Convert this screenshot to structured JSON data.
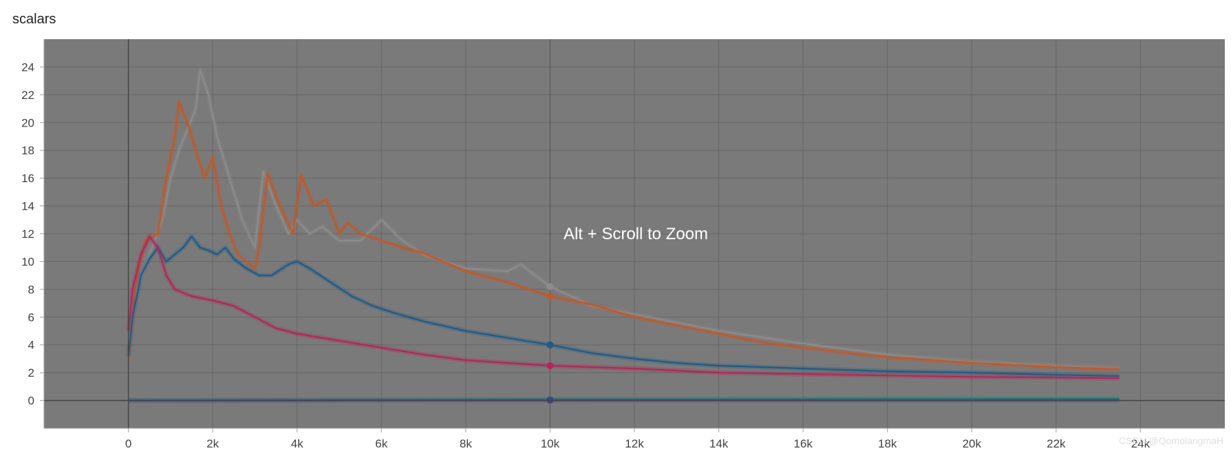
{
  "panel": {
    "title": "scalars"
  },
  "overlay": {
    "message": "Alt + Scroll to Zoom"
  },
  "watermark": "CSDN @QomolangmaH",
  "colors": {
    "plot_bg": "#7a7a7a",
    "grid": "#666666",
    "axis": "#444444",
    "marker_line": "#555555"
  },
  "chart_data": {
    "type": "line",
    "xlim": [
      -2000,
      26000
    ],
    "ylim": [
      -2,
      26
    ],
    "x_ticks": [
      "0",
      "2k",
      "4k",
      "6k",
      "8k",
      "10k",
      "12k",
      "14k",
      "16k",
      "18k",
      "20k",
      "22k",
      "24k"
    ],
    "y_ticks": [
      "0",
      "2",
      "4",
      "6",
      "8",
      "10",
      "12",
      "14",
      "16",
      "18",
      "20",
      "22",
      "24"
    ],
    "grid": true,
    "hover_x": 10000,
    "series": [
      {
        "color": "#8c8c8c",
        "points": [
          [
            0,
            4
          ],
          [
            200,
            8
          ],
          [
            500,
            10.5
          ],
          [
            800,
            13
          ],
          [
            1000,
            16
          ],
          [
            1200,
            18
          ],
          [
            1400,
            19.5
          ],
          [
            1600,
            21
          ],
          [
            1700,
            23.8
          ],
          [
            1900,
            22
          ],
          [
            2100,
            19
          ],
          [
            2400,
            16
          ],
          [
            2700,
            13
          ],
          [
            3000,
            11
          ],
          [
            3200,
            16.5
          ],
          [
            3500,
            14
          ],
          [
            3800,
            12
          ],
          [
            4000,
            13
          ],
          [
            4300,
            12
          ],
          [
            4600,
            12.5
          ],
          [
            5000,
            11.5
          ],
          [
            5500,
            11.5
          ],
          [
            6000,
            13
          ],
          [
            6500,
            11.5
          ],
          [
            7000,
            10.5
          ],
          [
            8000,
            9.5
          ],
          [
            9000,
            9.3
          ],
          [
            9300,
            9.8
          ],
          [
            10000,
            8.2
          ],
          [
            11000,
            6.8
          ],
          [
            12000,
            6.2
          ],
          [
            13000,
            5.6
          ],
          [
            14000,
            5.0
          ],
          [
            16000,
            4.1
          ],
          [
            18000,
            3.3
          ],
          [
            20000,
            2.8
          ],
          [
            22000,
            2.5
          ],
          [
            23500,
            2.35
          ]
        ],
        "hover_value": 8.2
      },
      {
        "color": "#c0582b",
        "points": [
          [
            0,
            3
          ],
          [
            200,
            9
          ],
          [
            400,
            11.5
          ],
          [
            700,
            12
          ],
          [
            900,
            16
          ],
          [
            1100,
            19
          ],
          [
            1200,
            21.5
          ],
          [
            1400,
            20
          ],
          [
            1600,
            18
          ],
          [
            1800,
            16
          ],
          [
            2000,
            17.5
          ],
          [
            2200,
            14
          ],
          [
            2400,
            12
          ],
          [
            2600,
            10.5
          ],
          [
            3000,
            9.5
          ],
          [
            3100,
            11
          ],
          [
            3300,
            16.3
          ],
          [
            3600,
            14
          ],
          [
            3900,
            12
          ],
          [
            4100,
            16.2
          ],
          [
            4400,
            14
          ],
          [
            4700,
            14.5
          ],
          [
            5000,
            12
          ],
          [
            5200,
            12.8
          ],
          [
            5500,
            12
          ],
          [
            6000,
            11.5
          ],
          [
            6500,
            11
          ],
          [
            7000,
            10.6
          ],
          [
            8000,
            9.3
          ],
          [
            9000,
            8.5
          ],
          [
            10000,
            7.5
          ],
          [
            11000,
            6.9
          ],
          [
            12000,
            6.0
          ],
          [
            13000,
            5.4
          ],
          [
            14000,
            4.8
          ],
          [
            15000,
            4.2
          ],
          [
            16000,
            3.8
          ],
          [
            18000,
            3.1
          ],
          [
            20000,
            2.7
          ],
          [
            22000,
            2.4
          ],
          [
            23500,
            2.25
          ]
        ],
        "hover_value": 7.5
      },
      {
        "color": "#1f5b85",
        "points": [
          [
            0,
            3.2
          ],
          [
            100,
            6
          ],
          [
            300,
            9
          ],
          [
            500,
            10.2
          ],
          [
            700,
            11
          ],
          [
            900,
            10
          ],
          [
            1100,
            10.5
          ],
          [
            1300,
            11
          ],
          [
            1500,
            11.8
          ],
          [
            1700,
            11
          ],
          [
            1900,
            10.8
          ],
          [
            2100,
            10.5
          ],
          [
            2300,
            11
          ],
          [
            2500,
            10.2
          ],
          [
            2800,
            9.5
          ],
          [
            3100,
            9
          ],
          [
            3400,
            9
          ],
          [
            3800,
            9.8
          ],
          [
            4000,
            10
          ],
          [
            4300,
            9.5
          ],
          [
            4800,
            8.5
          ],
          [
            5300,
            7.5
          ],
          [
            5800,
            6.8
          ],
          [
            6300,
            6.3
          ],
          [
            7000,
            5.7
          ],
          [
            8000,
            5.0
          ],
          [
            9000,
            4.5
          ],
          [
            10000,
            4.0
          ],
          [
            11000,
            3.4
          ],
          [
            12000,
            3.0
          ],
          [
            13000,
            2.7
          ],
          [
            14000,
            2.5
          ],
          [
            16000,
            2.3
          ],
          [
            18000,
            2.1
          ],
          [
            20000,
            2.0
          ],
          [
            22000,
            1.85
          ],
          [
            23500,
            1.75
          ]
        ],
        "hover_value": 4.0
      },
      {
        "color": "#b1275a",
        "points": [
          [
            0,
            5
          ],
          [
            100,
            8
          ],
          [
            300,
            10.5
          ],
          [
            500,
            11.8
          ],
          [
            700,
            11
          ],
          [
            900,
            9
          ],
          [
            1100,
            8
          ],
          [
            1500,
            7.5
          ],
          [
            2000,
            7.2
          ],
          [
            2500,
            6.8
          ],
          [
            3000,
            6
          ],
          [
            3500,
            5.2
          ],
          [
            4000,
            4.8
          ],
          [
            5000,
            4.3
          ],
          [
            6000,
            3.8
          ],
          [
            7000,
            3.3
          ],
          [
            8000,
            2.9
          ],
          [
            9000,
            2.7
          ],
          [
            10000,
            2.5
          ],
          [
            11000,
            2.4
          ],
          [
            12000,
            2.3
          ],
          [
            14000,
            2.0
          ],
          [
            16000,
            1.9
          ],
          [
            18000,
            1.8
          ],
          [
            20000,
            1.7
          ],
          [
            22000,
            1.65
          ],
          [
            23500,
            1.6
          ]
        ],
        "hover_value": 2.5
      },
      {
        "color": "#1e8a6e",
        "points": [
          [
            0,
            0
          ],
          [
            5000,
            0.05
          ],
          [
            10000,
            0.08
          ],
          [
            15000,
            0.1
          ],
          [
            20000,
            0.12
          ],
          [
            23500,
            0.12
          ]
        ],
        "hover_value": 0.08
      },
      {
        "color": "#4a3f8a",
        "points": [
          [
            0,
            0
          ],
          [
            10000,
            0.02
          ],
          [
            23500,
            0.03
          ]
        ],
        "hover_value": 0.02
      }
    ]
  }
}
